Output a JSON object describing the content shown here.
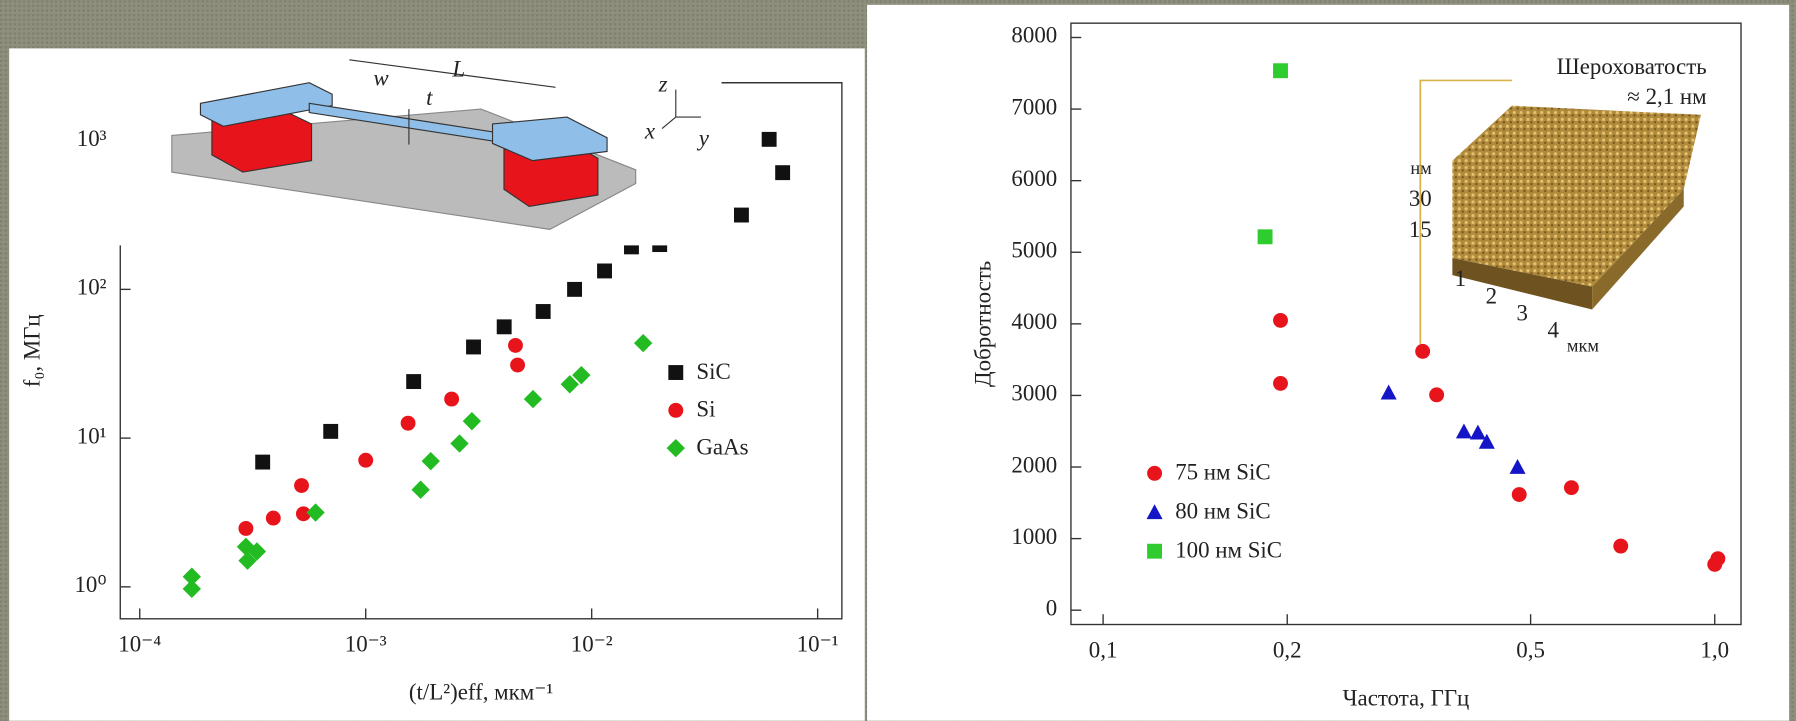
{
  "chart_data": [
    {
      "type": "scatter",
      "xlog": true,
      "ylog": true,
      "xlabel": "(t/L²)eff, мкм⁻¹",
      "ylabel": "f₀, МГц",
      "xlim": [
        8.2e-05,
        0.128
      ],
      "ylim": [
        0.61,
        2450
      ],
      "xticks": [
        {
          "value": 0.0001,
          "label": "10⁻⁴"
        },
        {
          "value": 0.001,
          "label": "10⁻³"
        },
        {
          "value": 0.01,
          "label": "10⁻²"
        },
        {
          "value": 0.1,
          "label": "10⁻¹"
        }
      ],
      "yticks": [
        {
          "value": 1,
          "label": "10⁰"
        },
        {
          "value": 10,
          "label": "10¹"
        },
        {
          "value": 100,
          "label": "10²"
        },
        {
          "value": 1000,
          "label": "10³"
        }
      ],
      "legend": "right",
      "schematic_labels": [
        "L",
        "w",
        "t",
        "z",
        "x",
        "y"
      ],
      "series": [
        {
          "name": "SiC",
          "color": "#111111",
          "marker": "square",
          "x": [
            0.00035,
            0.0007,
            0.00163,
            0.003,
            0.0041,
            0.0061,
            0.0084,
            0.0114,
            0.015,
            0.02,
            0.046,
            0.061,
            0.07
          ],
          "values": [
            6.9,
            11.1,
            24,
            41,
            56,
            71,
            100,
            133,
            193,
            200,
            316,
            1020,
            609
          ]
        },
        {
          "name": "Si",
          "color": "#e8141b",
          "marker": "circle",
          "x": [
            0.000295,
            0.00039,
            0.00052,
            0.00053,
            0.001,
            0.00154,
            0.0024,
            0.0046,
            0.0047
          ],
          "values": [
            2.47,
            2.9,
            4.8,
            3.1,
            7.1,
            12.6,
            18.3,
            42,
            31
          ]
        },
        {
          "name": "GaAs",
          "color": "#22bb22",
          "marker": "diamond",
          "x": [
            0.00017,
            0.00017,
            0.000295,
            0.0003,
            0.00033,
            0.0006,
            0.00175,
            0.00194,
            0.0026,
            0.00295,
            0.0055,
            0.008,
            0.009,
            0.0169
          ],
          "values": [
            1.17,
            0.97,
            1.86,
            1.5,
            1.73,
            3.16,
            4.5,
            7.0,
            9.2,
            13,
            18.3,
            23,
            26.5,
            43.5
          ]
        }
      ]
    },
    {
      "type": "scatter",
      "xlog": true,
      "ylog": false,
      "xlabel": "Частота, ГГц",
      "ylabel": "Добротность",
      "xlim": [
        0.0886,
        1.104
      ],
      "ylim": [
        -200,
        8200
      ],
      "xticks": [
        {
          "value": 0.1,
          "label": "0,1"
        },
        {
          "value": 0.2,
          "label": "0,2"
        },
        {
          "value": 0.5,
          "label": "0,5"
        },
        {
          "value": 1.0,
          "label": "1,0"
        }
      ],
      "yticks": [
        0,
        1000,
        2000,
        3000,
        4000,
        5000,
        6000,
        7000,
        8000
      ],
      "legend": "lower left",
      "inset": {
        "title": "Шероховатость",
        "value": "≈ 2,1 нм",
        "z_unit": "нм",
        "z_ticks": [
          30,
          15
        ],
        "x_ticks": [
          1,
          2,
          3,
          4
        ],
        "x_unit": "мкм"
      },
      "series": [
        {
          "name": "75 нм SiC",
          "color": "#e8141b",
          "marker": "circle",
          "x": [
            0.195,
            0.195,
            0.333,
            0.351,
            0.479,
            0.583,
            0.702,
            1.0,
            1.012
          ],
          "values": [
            4048,
            3168,
            3616,
            3008,
            1616,
            1712,
            896,
            640,
            720
          ]
        },
        {
          "name": "80 нм SiC",
          "color": "#1515c8",
          "marker": "triangle",
          "x": [
            0.293,
            0.389,
            0.41,
            0.424,
            0.476
          ],
          "values": [
            3040,
            2496,
            2480,
            2352,
            2000
          ]
        },
        {
          "name": "100 нм SiC",
          "color": "#2ecc2e",
          "marker": "square",
          "x": [
            0.195,
            0.184
          ],
          "values": [
            7536,
            5216
          ]
        }
      ]
    }
  ]
}
